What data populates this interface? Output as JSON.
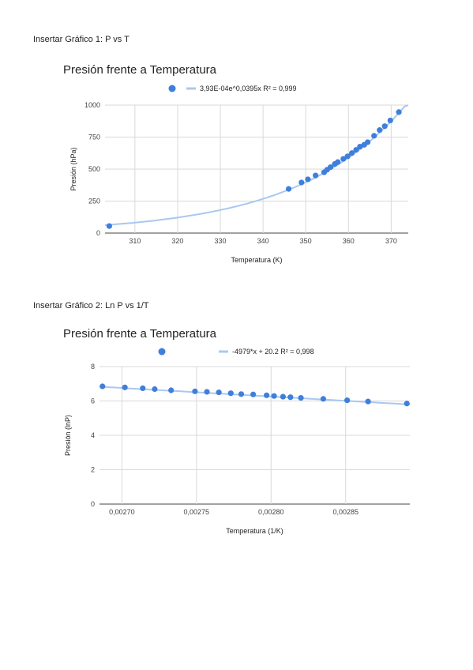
{
  "captions": {
    "graph1": "Insertar Gráfico 1: P vs T",
    "graph2": "Insertar Gráfico 2: Ln P vs 1/T"
  },
  "colors": {
    "points": "#3f7fdc",
    "trend": "#a9c8f0",
    "grid": "#d9d9d9",
    "axis": "#444444"
  },
  "chart_data": [
    {
      "type": "scatter",
      "title": "Presión frente a Temperatura",
      "xlabel": "Temperatura (K)",
      "ylabel": "Presión (hPa)",
      "legend": {
        "trendline_label": "3,93E-04e^0,0395x R² = 0,999",
        "placement": "top"
      },
      "xlim": [
        303,
        374
      ],
      "ylim": [
        0,
        1000
      ],
      "x_ticks": [
        "310",
        "320",
        "330",
        "340",
        "350",
        "360",
        "370"
      ],
      "y_ticks": [
        "0",
        "250",
        "500",
        "750",
        "1000"
      ],
      "x": [
        304,
        346,
        349,
        350.5,
        352.3,
        354.3,
        355,
        355.8,
        356.8,
        357.5,
        358.8,
        359.8,
        360.8,
        361.8,
        362.7,
        363.7,
        364.5,
        366,
        367.3,
        368.5,
        369.8,
        371.8
      ],
      "y": [
        55,
        345,
        395,
        420,
        450,
        475,
        495,
        515,
        540,
        555,
        580,
        600,
        625,
        650,
        675,
        690,
        710,
        760,
        805,
        835,
        880,
        945
      ],
      "trendline": {
        "type": "exponential",
        "a": 0.000393,
        "b": 0.0395
      }
    },
    {
      "type": "scatter",
      "title": "Presión frente a Temperatura",
      "xlabel": "Temperatura (1/K)",
      "ylabel": "Presión (lnP)",
      "legend": {
        "trendline_label": "-4979*x + 20.2 R² = 0,998",
        "placement": "top"
      },
      "xlim": [
        0.002685,
        0.002893
      ],
      "ylim": [
        0,
        8
      ],
      "x_ticks": [
        "0,00270",
        "0,00275",
        "0,00280",
        "0,00285"
      ],
      "y_ticks": [
        "0",
        "2",
        "4",
        "6",
        "8"
      ],
      "x": [
        0.002687,
        0.002702,
        0.002714,
        0.002722,
        0.002733,
        0.002749,
        0.002757,
        0.002765,
        0.002773,
        0.00278,
        0.002788,
        0.002797,
        0.002802,
        0.002808,
        0.002813,
        0.00282,
        0.002835,
        0.002851,
        0.002865,
        0.002891
      ],
      "y": [
        6.85,
        6.79,
        6.74,
        6.69,
        6.62,
        6.56,
        6.53,
        6.5,
        6.45,
        6.4,
        6.38,
        6.33,
        6.29,
        6.25,
        6.22,
        6.18,
        6.12,
        6.04,
        5.97,
        5.85
      ],
      "trendline": {
        "type": "linear",
        "slope": -4979,
        "intercept": 20.2
      }
    }
  ]
}
